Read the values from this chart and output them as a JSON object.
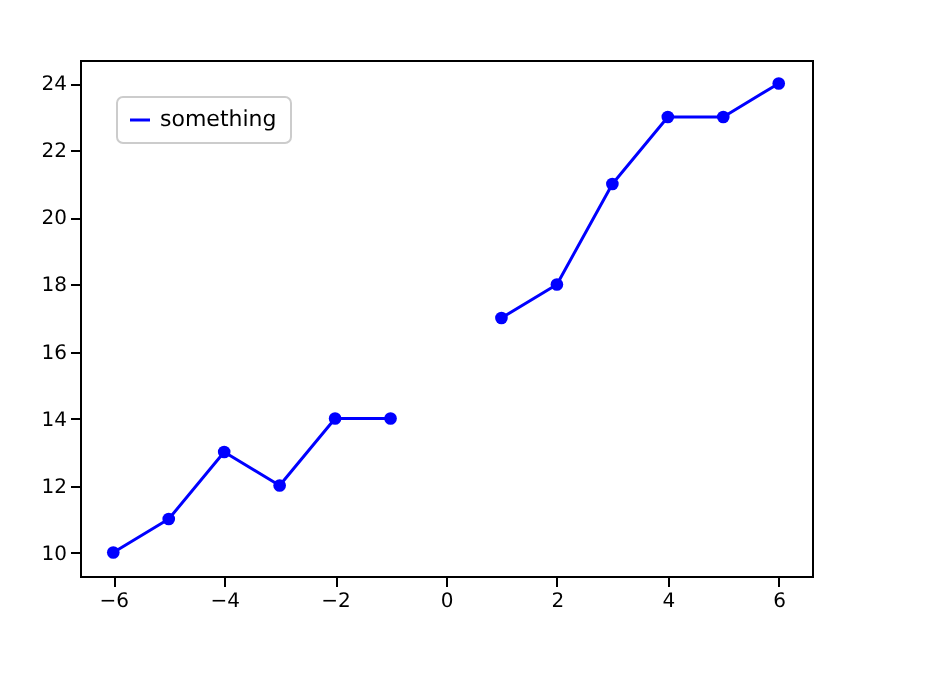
{
  "chart_data": {
    "type": "line",
    "x": [
      -6,
      -5,
      -4,
      -3,
      -2,
      -1,
      0,
      1,
      2,
      3,
      4,
      5,
      6
    ],
    "series": [
      {
        "name": "something",
        "color": "#0000ff",
        "values": [
          10,
          11,
          13,
          12,
          14,
          14,
          null,
          17,
          18,
          21,
          23,
          23,
          24
        ]
      }
    ],
    "xlim": [
      -6.6,
      6.6
    ],
    "ylim": [
      9.3,
      24.7
    ],
    "xticks": [
      -6,
      -4,
      -2,
      0,
      2,
      4,
      6
    ],
    "yticks": [
      10,
      12,
      14,
      16,
      18,
      20,
      22,
      24
    ],
    "grid": false,
    "legend": "top left",
    "marker": "circle",
    "line_style": "solid"
  }
}
